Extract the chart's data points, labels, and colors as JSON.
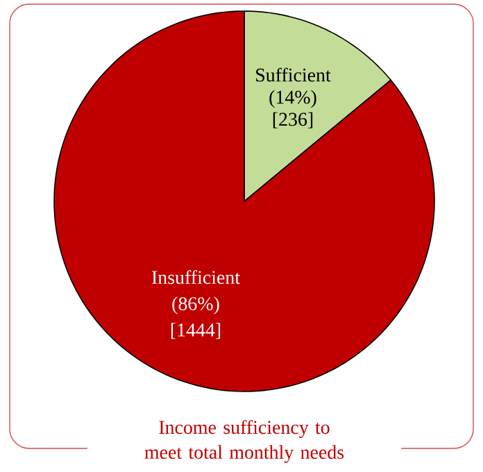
{
  "chart_data": {
    "type": "pie",
    "title": "Income sufficiency to meet total monthly needs",
    "categories": [
      "Sufficient",
      "Insufficient"
    ],
    "values": [
      14,
      86
    ],
    "value_labels": [
      "(14%)",
      "(86%)"
    ],
    "colors": [
      "#c3dc98",
      "#c00000"
    ],
    "annotations": [
      "[236]",
      "[1444]"
    ]
  }
}
